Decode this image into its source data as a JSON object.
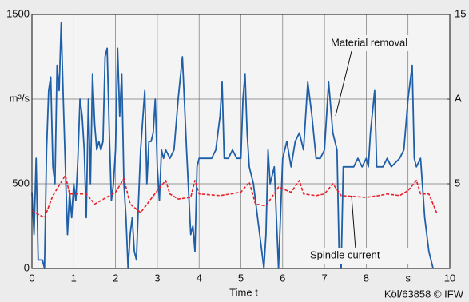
{
  "chart_data": {
    "type": "line",
    "x_label": "Time t",
    "note": "Köl/63858 © IFW",
    "xlim": [
      0,
      10
    ],
    "xticks": [
      0,
      1,
      2,
      3,
      4,
      5,
      6,
      7,
      8,
      {
        "value": 9,
        "label": "s"
      },
      10
    ],
    "ylim": [
      0,
      1500
    ],
    "yticks": [
      0,
      500,
      {
        "value": 1000,
        "label": "m³/s"
      },
      1500
    ],
    "y2lim": [
      0,
      15
    ],
    "y2ticks": [
      5,
      {
        "value": 10,
        "label": "A"
      },
      15
    ],
    "grid": true,
    "series": [
      {
        "name": "Material removal",
        "color": "#1f5fa8",
        "dashed": false,
        "x": [
          0,
          0.05,
          0.1,
          0.15,
          0.25,
          0.3,
          0.35,
          0.4,
          0.45,
          0.5,
          0.55,
          0.6,
          0.65,
          0.7,
          0.75,
          0.8,
          0.85,
          0.9,
          0.95,
          1.0,
          1.05,
          1.1,
          1.15,
          1.2,
          1.25,
          1.3,
          1.35,
          1.4,
          1.45,
          1.5,
          1.55,
          1.6,
          1.65,
          1.7,
          1.75,
          1.8,
          1.85,
          1.9,
          1.95,
          2.0,
          2.05,
          2.1,
          2.15,
          2.2,
          2.25,
          2.3,
          2.35,
          2.4,
          2.45,
          2.5,
          2.55,
          2.6,
          2.7,
          2.75,
          2.8,
          2.85,
          2.9,
          2.95,
          3.0,
          3.05,
          3.1,
          3.15,
          3.2,
          3.3,
          3.4,
          3.5,
          3.6,
          3.7,
          3.75,
          3.8,
          3.85,
          3.9,
          3.95,
          4.0,
          4.1,
          4.2,
          4.3,
          4.4,
          4.5,
          4.55,
          4.6,
          4.7,
          4.8,
          4.9,
          5.0,
          5.05,
          5.1,
          5.15,
          5.2,
          5.3,
          5.4,
          5.5,
          5.55,
          5.6,
          5.65,
          5.7,
          5.8,
          5.9,
          6.0,
          6.1,
          6.2,
          6.3,
          6.4,
          6.5,
          6.6,
          6.7,
          6.8,
          6.9,
          7.0,
          7.1,
          7.2,
          7.3,
          7.35,
          7.4,
          7.45,
          7.5,
          7.6,
          7.7,
          7.8,
          7.9,
          8.0,
          8.05,
          8.1,
          8.2,
          8.25,
          8.3,
          8.4,
          8.5,
          8.6,
          8.8,
          8.9,
          9.0,
          9.1,
          9.15,
          9.2,
          9.3,
          9.4,
          9.5,
          9.6
        ],
        "values": [
          450,
          200,
          650,
          50,
          50,
          0,
          700,
          1050,
          1130,
          600,
          500,
          1200,
          1050,
          1450,
          1000,
          600,
          200,
          450,
          300,
          500,
          400,
          650,
          1000,
          900,
          700,
          300,
          1000,
          500,
          1150,
          850,
          700,
          750,
          700,
          750,
          1250,
          1300,
          800,
          400,
          500,
          700,
          1300,
          900,
          1150,
          500,
          300,
          0,
          200,
          300,
          100,
          50,
          400,
          700,
          1050,
          500,
          750,
          750,
          800,
          1000,
          600,
          400,
          700,
          650,
          700,
          650,
          700,
          1000,
          1250,
          700,
          450,
          200,
          250,
          100,
          600,
          650,
          650,
          650,
          650,
          700,
          900,
          1100,
          650,
          650,
          700,
          650,
          650,
          1000,
          1150,
          800,
          600,
          500,
          300,
          100,
          0,
          200,
          700,
          500,
          600,
          0,
          650,
          750,
          600,
          750,
          800,
          700,
          1100,
          900,
          650,
          650,
          700,
          1100,
          800,
          700,
          100,
          0,
          600,
          600,
          600,
          600,
          650,
          600,
          650,
          600,
          800,
          1050,
          600,
          600,
          600,
          650,
          600,
          650,
          700,
          1000,
          1200,
          650,
          600,
          650,
          300,
          100,
          0
        ]
      },
      {
        "name": "Spindle current",
        "color": "#e8202a",
        "dashed": true,
        "axis": "y2",
        "x": [
          0,
          0.3,
          0.5,
          0.8,
          0.9,
          1.3,
          1.5,
          2.0,
          2.2,
          2.35,
          2.6,
          3.0,
          3.2,
          3.3,
          3.5,
          3.8,
          3.9,
          4.0,
          4.5,
          5.0,
          5.2,
          5.35,
          5.6,
          5.9,
          6.2,
          6.4,
          6.5,
          6.8,
          7.0,
          7.2,
          7.4,
          8.0,
          8.3,
          8.5,
          8.8,
          9.0,
          9.2,
          9.3,
          9.5,
          9.7
        ],
        "values": [
          3.4,
          3.0,
          4.3,
          5.5,
          4.4,
          4.4,
          3.8,
          4.5,
          5.3,
          3.8,
          3.3,
          4.6,
          5.2,
          4.4,
          4.1,
          4.2,
          5.2,
          4.4,
          4.3,
          4.5,
          5.1,
          3.8,
          3.7,
          4.8,
          4.5,
          5.2,
          4.4,
          4.3,
          4.4,
          5.0,
          4.3,
          4.2,
          4.3,
          4.4,
          4.3,
          4.6,
          5.2,
          4.4,
          4.4,
          3.2
        ]
      }
    ]
  }
}
